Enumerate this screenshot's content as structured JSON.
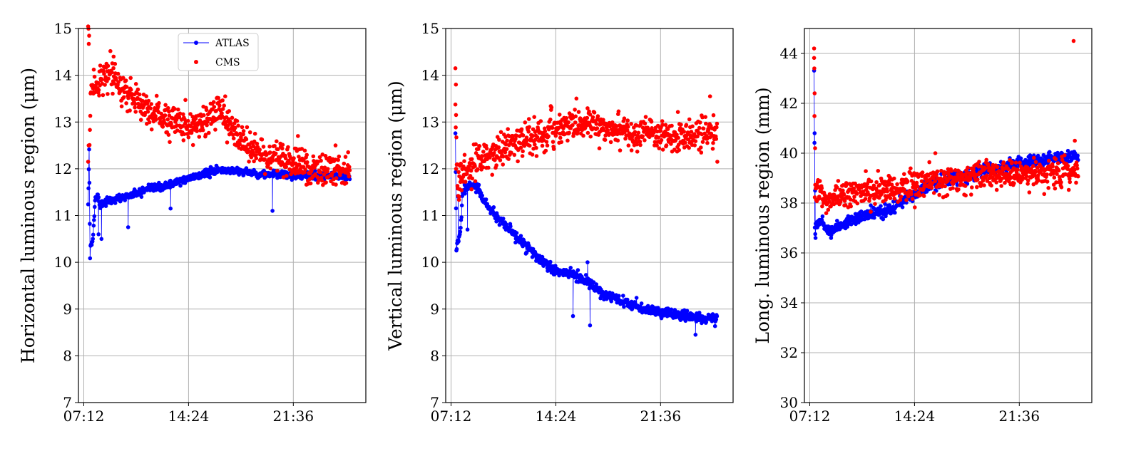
{
  "chart_data": [
    {
      "type": "scatter",
      "ylabel": "Horizontal luminous region (μm)",
      "ylim": [
        7,
        15
      ],
      "yticks": [
        7,
        8,
        9,
        10,
        11,
        12,
        13,
        14,
        15
      ],
      "xlim": [
        "06:50",
        "02:35"
      ],
      "xtick_labels": [
        "07:12",
        "14:24",
        "21:36"
      ],
      "grid": true,
      "legend": {
        "placement": "top-center",
        "entries": [
          "ATLAS",
          "CMS"
        ]
      },
      "series": [
        {
          "name": "ATLAS",
          "color": "#0000ff",
          "style": "line-markers",
          "anchors": [
            [
              "07:30",
              11.2
            ],
            [
              "07:34",
              12.4
            ],
            [
              "07:38",
              10.1
            ],
            [
              "07:40",
              10.4
            ],
            [
              "07:48",
              10.4
            ],
            [
              "08:00",
              11.4
            ],
            [
              "08:10",
              11.4
            ],
            [
              "08:20",
              11.25
            ],
            [
              "08:40",
              11.3
            ],
            [
              "09:30",
              11.35
            ],
            [
              "10:30",
              11.45
            ],
            [
              "11:30",
              11.55
            ],
            [
              "12:30",
              11.6
            ],
            [
              "13:30",
              11.7
            ],
            [
              "14:30",
              11.8
            ],
            [
              "15:30",
              11.9
            ],
            [
              "16:30",
              11.97
            ],
            [
              "17:30",
              11.97
            ],
            [
              "18:30",
              11.92
            ],
            [
              "19:30",
              11.88
            ],
            [
              "20:30",
              11.88
            ],
            [
              "21:30",
              11.87
            ],
            [
              "22:30",
              11.86
            ],
            [
              "23:30",
              11.86
            ],
            [
              "00:30",
              11.85
            ],
            [
              "01:30",
              11.85
            ]
          ],
          "noise": 0.04,
          "outliers": [
            [
              "08:13",
              10.6
            ],
            [
              "08:25",
              10.5
            ],
            [
              "10:15",
              10.75
            ],
            [
              "11:10",
              11.4
            ],
            [
              "13:10",
              11.15
            ],
            [
              "20:10",
              11.1
            ],
            [
              "21:10",
              11.8
            ]
          ]
        },
        {
          "name": "CMS",
          "color": "#ff0000",
          "style": "markers",
          "anchors": [
            [
              "07:30",
              15.0
            ],
            [
              "07:34",
              14.8
            ],
            [
              "07:36",
              12.5
            ],
            [
              "07:40",
              13.4
            ],
            [
              "07:50",
              13.8
            ],
            [
              "08:20",
              13.9
            ],
            [
              "09:00",
              14.0
            ],
            [
              "09:40",
              13.75
            ],
            [
              "10:30",
              13.55
            ],
            [
              "11:30",
              13.3
            ],
            [
              "12:30",
              13.1
            ],
            [
              "13:30",
              13.0
            ],
            [
              "14:30",
              12.95
            ],
            [
              "15:30",
              13.05
            ],
            [
              "16:30",
              13.2
            ],
            [
              "17:30",
              12.8
            ],
            [
              "18:30",
              12.5
            ],
            [
              "19:30",
              12.3
            ],
            [
              "20:30",
              12.2
            ],
            [
              "21:30",
              12.1
            ],
            [
              "22:30",
              12.05
            ],
            [
              "23:30",
              12.0
            ],
            [
              "00:30",
              12.0
            ],
            [
              "01:30",
              11.95
            ]
          ],
          "noise": 0.17,
          "outliers": [
            [
              "07:30",
              12.15
            ],
            [
              "07:32",
              12.5
            ],
            [
              "09:15",
              14.4
            ],
            [
              "16:55",
              13.55
            ],
            [
              "21:55",
              12.7
            ],
            [
              "00:30",
              12.5
            ]
          ]
        }
      ]
    },
    {
      "type": "scatter",
      "ylabel": "Vertical luminous region (μm)",
      "ylim": [
        7,
        15
      ],
      "yticks": [
        7,
        8,
        9,
        10,
        11,
        12,
        13,
        14,
        15
      ],
      "xlim": [
        "06:50",
        "02:35"
      ],
      "xtick_labels": [
        "07:12",
        "14:24",
        "21:36"
      ],
      "grid": true,
      "series": [
        {
          "name": "ATLAS",
          "color": "#0000ff",
          "style": "line-markers",
          "anchors": [
            [
              "07:30",
              12.75
            ],
            [
              "07:34",
              10.3
            ],
            [
              "07:40",
              10.4
            ],
            [
              "07:50",
              10.6
            ],
            [
              "08:00",
              11.5
            ],
            [
              "08:30",
              11.65
            ],
            [
              "09:00",
              11.6
            ],
            [
              "09:30",
              11.3
            ],
            [
              "10:00",
              11.1
            ],
            [
              "10:30",
              10.9
            ],
            [
              "11:30",
              10.6
            ],
            [
              "12:30",
              10.3
            ],
            [
              "13:30",
              10.0
            ],
            [
              "14:30",
              9.8
            ],
            [
              "15:30",
              9.75
            ],
            [
              "16:30",
              9.6
            ],
            [
              "17:30",
              9.35
            ],
            [
              "18:30",
              9.2
            ],
            [
              "19:30",
              9.1
            ],
            [
              "20:30",
              9.0
            ],
            [
              "21:30",
              8.95
            ],
            [
              "22:30",
              8.9
            ],
            [
              "23:30",
              8.85
            ],
            [
              "00:30",
              8.8
            ],
            [
              "01:30",
              8.8
            ]
          ],
          "noise": 0.05,
          "outliers": [
            [
              "07:42",
              11.4
            ],
            [
              "08:10",
              11.7
            ],
            [
              "08:20",
              10.7
            ],
            [
              "15:35",
              8.85
            ],
            [
              "16:35",
              10.0
            ],
            [
              "16:45",
              8.65
            ],
            [
              "00:00",
              8.45
            ]
          ]
        },
        {
          "name": "CMS",
          "color": "#ff0000",
          "style": "markers",
          "anchors": [
            [
              "07:30",
              13.5
            ],
            [
              "07:34",
              12.5
            ],
            [
              "07:40",
              11.6
            ],
            [
              "08:00",
              11.9
            ],
            [
              "08:30",
              12.0
            ],
            [
              "09:30",
              12.2
            ],
            [
              "10:30",
              12.4
            ],
            [
              "11:30",
              12.55
            ],
            [
              "12:30",
              12.65
            ],
            [
              "13:30",
              12.7
            ],
            [
              "14:30",
              12.85
            ],
            [
              "15:30",
              12.95
            ],
            [
              "16:30",
              12.95
            ],
            [
              "17:30",
              12.9
            ],
            [
              "18:30",
              12.85
            ],
            [
              "19:30",
              12.8
            ],
            [
              "20:30",
              12.75
            ],
            [
              "21:30",
              12.7
            ],
            [
              "22:30",
              12.7
            ],
            [
              "23:30",
              12.7
            ],
            [
              "00:30",
              12.75
            ],
            [
              "01:30",
              12.8
            ]
          ],
          "noise": 0.17,
          "outliers": [
            [
              "07:30",
              14.15
            ],
            [
              "07:32",
              13.8
            ],
            [
              "07:33",
              12.0
            ],
            [
              "07:45",
              11.4
            ],
            [
              "01:00",
              13.55
            ],
            [
              "01:30",
              12.15
            ]
          ]
        }
      ]
    },
    {
      "type": "scatter",
      "ylabel": "Long. luminous region (mm)",
      "ylim": [
        30,
        45
      ],
      "yticks": [
        30,
        32,
        34,
        36,
        38,
        40,
        42,
        44
      ],
      "xlim": [
        "06:50",
        "02:35"
      ],
      "xtick_labels": [
        "07:12",
        "14:24",
        "21:36"
      ],
      "grid": true,
      "series": [
        {
          "name": "ATLAS",
          "color": "#0000ff",
          "style": "line-markers",
          "anchors": [
            [
              "07:30",
              43.4
            ],
            [
              "07:33",
              37.2
            ],
            [
              "07:40",
              37.1
            ],
            [
              "08:00",
              37.4
            ],
            [
              "08:20",
              36.9
            ],
            [
              "09:00",
              37.0
            ],
            [
              "10:00",
              37.3
            ],
            [
              "11:00",
              37.5
            ],
            [
              "12:00",
              37.6
            ],
            [
              "13:00",
              37.8
            ],
            [
              "14:00",
              38.3
            ],
            [
              "15:00",
              38.6
            ],
            [
              "16:00",
              38.8
            ],
            [
              "17:00",
              39.0
            ],
            [
              "18:00",
              39.1
            ],
            [
              "19:00",
              39.3
            ],
            [
              "20:00",
              39.4
            ],
            [
              "21:00",
              39.5
            ],
            [
              "22:00",
              39.6
            ],
            [
              "23:00",
              39.7
            ],
            [
              "00:00",
              39.8
            ],
            [
              "01:00",
              39.85
            ],
            [
              "01:40",
              39.9
            ]
          ],
          "noise": 0.12,
          "outliers": [
            [
              "07:32",
              40.8
            ],
            [
              "07:34",
              38.5
            ],
            [
              "07:36",
              36.6
            ],
            [
              "08:40",
              36.6
            ],
            [
              "09:10",
              37.0
            ]
          ]
        },
        {
          "name": "CMS",
          "color": "#ff0000",
          "style": "markers",
          "anchors": [
            [
              "07:30",
              44.0
            ],
            [
              "07:33",
              38.4
            ],
            [
              "07:40",
              38.3
            ],
            [
              "08:00",
              38.4
            ],
            [
              "08:20",
              38.0
            ],
            [
              "09:00",
              38.3
            ],
            [
              "10:00",
              38.4
            ],
            [
              "11:00",
              38.5
            ],
            [
              "12:00",
              38.5
            ],
            [
              "13:00",
              38.6
            ],
            [
              "14:00",
              38.7
            ],
            [
              "15:00",
              38.8
            ],
            [
              "16:00",
              38.9
            ],
            [
              "17:00",
              39.0
            ],
            [
              "18:00",
              39.0
            ],
            [
              "19:00",
              39.1
            ],
            [
              "20:00",
              39.1
            ],
            [
              "21:00",
              39.2
            ],
            [
              "22:00",
              39.2
            ],
            [
              "23:00",
              39.2
            ],
            [
              "00:00",
              39.2
            ],
            [
              "01:00",
              39.3
            ],
            [
              "01:40",
              39.3
            ]
          ],
          "noise": 0.28,
          "outliers": [
            [
              "07:30",
              44.2
            ],
            [
              "07:31",
              43.4
            ],
            [
              "07:32",
              42.4
            ],
            [
              "07:34",
              40.2
            ],
            [
              "15:50",
              40.0
            ],
            [
              "01:20",
              44.5
            ],
            [
              "01:25",
              40.5
            ]
          ]
        }
      ]
    }
  ]
}
